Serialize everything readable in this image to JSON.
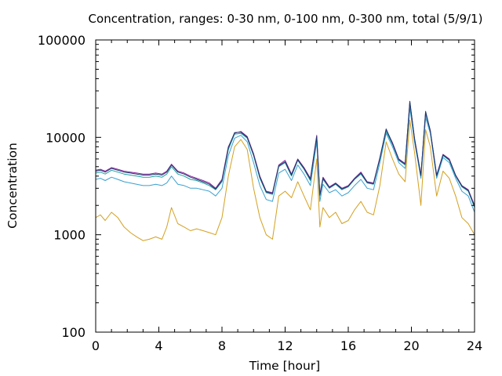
{
  "chart_data": {
    "type": "line",
    "title": "Concentration, ranges: 0-30 nm, 0-100 nm, 0-300 nm, total (5/9/1)",
    "xlabel": "Time [hour]",
    "ylabel": "Concentration",
    "xlim": [
      0,
      24
    ],
    "ylim": [
      100,
      100000
    ],
    "yscale": "log",
    "grid": false,
    "x_ticks": [
      "0",
      "4",
      "8",
      "12",
      "16",
      "20",
      "24"
    ],
    "y_ticks": [
      "100",
      "1000",
      "10000",
      "100000"
    ],
    "x_tick_values": [
      0,
      4,
      8,
      12,
      16,
      20,
      24
    ],
    "y_tick_values": [
      100,
      1000,
      10000,
      100000
    ],
    "series": [
      {
        "color": "#d4a020",
        "x": [
          0,
          0.3,
          0.6,
          1.0,
          1.4,
          1.8,
          2.2,
          2.6,
          3.0,
          3.4,
          3.8,
          4.2,
          4.5,
          4.8,
          5.2,
          5.6,
          6.0,
          6.4,
          6.8,
          7.2,
          7.6,
          8.0,
          8.4,
          8.8,
          9.2,
          9.6,
          10.0,
          10.4,
          10.8,
          11.2,
          11.6,
          12.0,
          12.4,
          12.8,
          13.2,
          13.6,
          14.0,
          14.2,
          14.4,
          14.8,
          15.2,
          15.6,
          16.0,
          16.4,
          16.8,
          17.2,
          17.6,
          18.0,
          18.4,
          18.8,
          19.2,
          19.6,
          19.9,
          20.2,
          20.6,
          20.9,
          21.2,
          21.6,
          22.0,
          22.4,
          22.8,
          23.2,
          23.6,
          24.0
        ],
        "y": [
          1500,
          1600,
          1400,
          1700,
          1500,
          1200,
          1050,
          950,
          870,
          900,
          950,
          900,
          1200,
          1900,
          1300,
          1200,
          1100,
          1150,
          1100,
          1050,
          1000,
          1500,
          4000,
          8000,
          9500,
          7500,
          3000,
          1500,
          1000,
          900,
          2500,
          2800,
          2400,
          3500,
          2500,
          1800,
          6000,
          1200,
          1900,
          1500,
          1700,
          1300,
          1400,
          1800,
          2200,
          1700,
          1600,
          3200,
          9000,
          6000,
          4200,
          3500,
          15000,
          7000,
          2000,
          12000,
          8000,
          2500,
          4500,
          3800,
          2500,
          1500,
          1300,
          1000
        ]
      },
      {
        "color": "#3aa0d0",
        "x": [
          0,
          0.3,
          0.6,
          1.0,
          1.4,
          1.8,
          2.2,
          2.6,
          3.0,
          3.4,
          3.8,
          4.2,
          4.5,
          4.8,
          5.2,
          5.6,
          6.0,
          6.4,
          6.8,
          7.2,
          7.6,
          8.0,
          8.4,
          8.8,
          9.2,
          9.6,
          10.0,
          10.4,
          10.8,
          11.2,
          11.6,
          12.0,
          12.4,
          12.8,
          13.2,
          13.6,
          14.0,
          14.2,
          14.4,
          14.8,
          15.2,
          15.6,
          16.0,
          16.4,
          16.8,
          17.2,
          17.6,
          18.0,
          18.4,
          18.8,
          19.2,
          19.6,
          19.9,
          20.2,
          20.6,
          20.9,
          21.2,
          21.6,
          22.0,
          22.4,
          22.8,
          23.2,
          23.6,
          24.0
        ],
        "y": [
          3700,
          3800,
          3600,
          3900,
          3700,
          3500,
          3400,
          3300,
          3200,
          3200,
          3300,
          3200,
          3400,
          4000,
          3300,
          3200,
          3000,
          3000,
          2900,
          2800,
          2500,
          3000,
          6500,
          9800,
          10500,
          9000,
          5500,
          3200,
          2300,
          2200,
          4300,
          4700,
          3600,
          5200,
          4200,
          3200,
          9000,
          2200,
          3300,
          2700,
          2900,
          2500,
          2700,
          3200,
          3700,
          3000,
          2900,
          5500,
          11000,
          8000,
          5500,
          4800,
          20000,
          9000,
          3800,
          16000,
          11000,
          3800,
          6200,
          5500,
          3800,
          2800,
          2500,
          1700
        ]
      },
      {
        "color": "#1aa0a0",
        "x": [
          0,
          0.3,
          0.6,
          1.0,
          1.4,
          1.8,
          2.2,
          2.6,
          3.0,
          3.4,
          3.8,
          4.2,
          4.5,
          4.8,
          5.2,
          5.6,
          6.0,
          6.4,
          6.8,
          7.2,
          7.6,
          8.0,
          8.4,
          8.8,
          9.2,
          9.6,
          10.0,
          10.4,
          10.8,
          11.2,
          11.6,
          12.0,
          12.4,
          12.8,
          13.2,
          13.6,
          14.0,
          14.2,
          14.4,
          14.8,
          15.2,
          15.6,
          16.0,
          16.4,
          16.8,
          17.2,
          17.6,
          18.0,
          18.4,
          18.8,
          19.2,
          19.6,
          19.9,
          20.2,
          20.6,
          20.9,
          21.2,
          21.6,
          22.0,
          22.4,
          22.8,
          23.2,
          23.6,
          24.0
        ],
        "y": [
          4300,
          4400,
          4200,
          4600,
          4400,
          4200,
          4100,
          4000,
          3900,
          3900,
          4000,
          3900,
          4200,
          5000,
          4200,
          4000,
          3700,
          3600,
          3400,
          3200,
          2900,
          3500,
          7500,
          10800,
          11000,
          9800,
          6500,
          3800,
          2700,
          2600,
          5000,
          5500,
          4000,
          5800,
          4700,
          3600,
          10000,
          2500,
          3700,
          3000,
          3300,
          2900,
          3100,
          3700,
          4200,
          3400,
          3300,
          6000,
          11500,
          8500,
          5800,
          5200,
          22000,
          9500,
          4000,
          17500,
          11500,
          4000,
          6500,
          5800,
          4000,
          3100,
          2800,
          1900
        ]
      },
      {
        "color": "#9020a0",
        "x": [
          0,
          0.3,
          0.6,
          1.0,
          1.4,
          1.8,
          2.2,
          2.6,
          3.0,
          3.4,
          3.8,
          4.2,
          4.5,
          4.8,
          5.2,
          5.6,
          6.0,
          6.4,
          6.8,
          7.2,
          7.6,
          8.0,
          8.4,
          8.8,
          9.2,
          9.6,
          10.0,
          10.4,
          10.8,
          11.2,
          11.6,
          12.0,
          12.4,
          12.8,
          13.2,
          13.6,
          14.0,
          14.2,
          14.4,
          14.8,
          15.2,
          15.6,
          16.0,
          16.4,
          16.8,
          17.2,
          17.6,
          18.0,
          18.4,
          18.8,
          19.2,
          19.6,
          19.9,
          20.2,
          20.6,
          20.9,
          21.2,
          21.6,
          22.0,
          22.4,
          22.8,
          23.2,
          23.6,
          24.0
        ],
        "y": [
          4600,
          4700,
          4500,
          4900,
          4700,
          4500,
          4400,
          4300,
          4200,
          4200,
          4300,
          4200,
          4500,
          5300,
          4500,
          4300,
          4000,
          3800,
          3600,
          3400,
          3000,
          3700,
          8000,
          11000,
          11500,
          10200,
          6800,
          4000,
          2800,
          2700,
          5200,
          5800,
          4200,
          6000,
          4900,
          3800,
          10500,
          2600,
          3900,
          3100,
          3400,
          3000,
          3200,
          3800,
          4400,
          3500,
          3400,
          6200,
          12000,
          8800,
          6000,
          5400,
          23000,
          9800,
          4100,
          18000,
          11800,
          4100,
          6700,
          6000,
          4100,
          3200,
          2900,
          2000
        ]
      },
      {
        "color": "#1a3a6a",
        "x": [
          0,
          0.3,
          0.6,
          1.0,
          1.4,
          1.8,
          2.2,
          2.6,
          3.0,
          3.4,
          3.8,
          4.2,
          4.5,
          4.8,
          5.2,
          5.6,
          6.0,
          6.4,
          6.8,
          7.2,
          7.6,
          8.0,
          8.4,
          8.8,
          9.2,
          9.6,
          10.0,
          10.4,
          10.8,
          11.2,
          11.6,
          12.0,
          12.4,
          12.8,
          13.2,
          13.6,
          14.0,
          14.2,
          14.4,
          14.8,
          15.2,
          15.6,
          16.0,
          16.4,
          16.8,
          17.2,
          17.6,
          18.0,
          18.4,
          18.8,
          19.2,
          19.6,
          19.9,
          20.2,
          20.6,
          20.9,
          21.2,
          21.6,
          22.0,
          22.4,
          22.8,
          23.2,
          23.6,
          24.0
        ],
        "y": [
          4500,
          4600,
          4400,
          4800,
          4600,
          4400,
          4300,
          4200,
          4100,
          4100,
          4200,
          4100,
          4400,
          5200,
          4400,
          4200,
          3900,
          3700,
          3500,
          3300,
          2950,
          3600,
          7800,
          11200,
          11300,
          10000,
          6600,
          3900,
          2750,
          2650,
          5100,
          5600,
          4100,
          5900,
          4800,
          3700,
          10200,
          2550,
          3800,
          3050,
          3350,
          2950,
          3150,
          3750,
          4300,
          3450,
          3350,
          6100,
          12200,
          8600,
          5900,
          5300,
          23500,
          9600,
          4050,
          18500,
          11600,
          4050,
          6600,
          5900,
          4050,
          3150,
          2850,
          1950
        ]
      }
    ]
  }
}
